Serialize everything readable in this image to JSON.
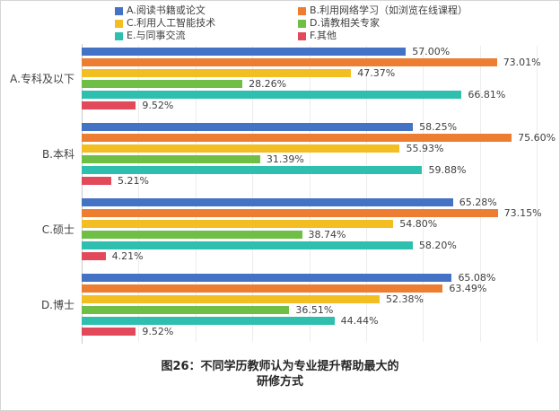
{
  "title": {
    "line1": "图26：不同学历教师认为专业提升帮助最大的",
    "line2": "研修方式"
  },
  "chart_data": {
    "type": "bar",
    "orientation": "horizontal",
    "title": "图26：不同学历教师认为专业提升帮助最大的研修方式",
    "categories": [
      "A.专科及以下",
      "B.本科",
      "C.硕士",
      "D.博士"
    ],
    "series": [
      {
        "name": "A.阅读书籍或论文",
        "color": "#4472C4",
        "values": [
          57.0,
          58.25,
          65.28,
          65.08
        ]
      },
      {
        "name": "B.利用网络学习（如浏览在线课程）",
        "color": "#ED7D31",
        "values": [
          73.01,
          75.6,
          73.15,
          63.49
        ]
      },
      {
        "name": "C.利用人工智能技术",
        "color": "#F2BE22",
        "values": [
          47.37,
          55.93,
          54.8,
          52.38
        ]
      },
      {
        "name": "D.请教相关专家",
        "color": "#6FBE45",
        "values": [
          28.26,
          31.39,
          38.74,
          36.51
        ]
      },
      {
        "name": "E.与同事交流",
        "color": "#2EBFAF",
        "values": [
          66.81,
          59.88,
          58.2,
          44.44
        ]
      },
      {
        "name": "F.其他",
        "color": "#E2495B",
        "values": [
          9.52,
          5.21,
          4.21,
          9.52
        ]
      }
    ],
    "value_suffix": "%",
    "value_decimals": 2,
    "xlim": [
      0,
      80
    ],
    "gridlines_every": 10,
    "grid": true,
    "legend_position": "top",
    "xlabel": "",
    "ylabel": ""
  }
}
